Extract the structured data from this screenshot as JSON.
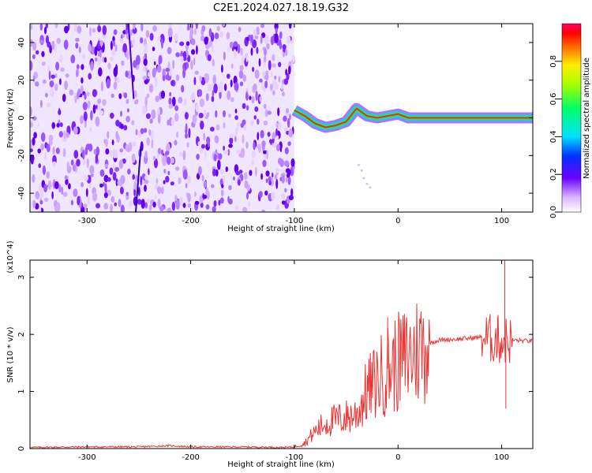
{
  "title": "C2E1.2024.027.18.19.G32",
  "chart_data": [
    {
      "type": "heatmap",
      "xlabel": "Height of straight line (km)",
      "ylabel": "Frequency (Hz)",
      "xlim": [
        -355,
        130
      ],
      "ylim": [
        -50,
        50
      ],
      "x_ticks": [
        -300,
        -200,
        -100,
        0,
        100
      ],
      "y_ticks": [
        -40,
        -20,
        0,
        20,
        40
      ],
      "colorbar": {
        "label": "Normalized spectral amplitude",
        "range": [
          0,
          1
        ],
        "ticks": [
          0.0,
          0.2,
          0.4,
          0.6,
          0.8
        ]
      },
      "noise_region": {
        "x_range": [
          -355,
          -100
        ]
      },
      "signal_trace": [
        {
          "x": -100,
          "y": 4
        },
        {
          "x": -90,
          "y": 1
        },
        {
          "x": -80,
          "y": -3
        },
        {
          "x": -70,
          "y": -5
        },
        {
          "x": -60,
          "y": -4
        },
        {
          "x": -50,
          "y": -2
        },
        {
          "x": -40,
          "y": 5
        },
        {
          "x": -30,
          "y": 1
        },
        {
          "x": -20,
          "y": 0
        },
        {
          "x": -10,
          "y": 1
        },
        {
          "x": 0,
          "y": 2
        },
        {
          "x": 10,
          "y": 0
        },
        {
          "x": 50,
          "y": 0
        },
        {
          "x": 100,
          "y": 0
        },
        {
          "x": 130,
          "y": 0
        }
      ],
      "grid": false
    },
    {
      "type": "line",
      "xlabel": "Height of straight line (km)",
      "ylabel": "SNR (10 * v/v)",
      "y_multiplier": "(x10^4)",
      "xlim": [
        -355,
        130
      ],
      "ylim": [
        0,
        3.3
      ],
      "x_ticks": [
        -300,
        -200,
        -100,
        0,
        100
      ],
      "y_ticks": [
        0,
        1,
        2,
        3
      ],
      "color": "#ee3333",
      "series": [
        {
          "points": [
            [
              -355,
              0.02
            ],
            [
              -300,
              0.03
            ],
            [
              -250,
              0.03
            ],
            [
              -220,
              0.05
            ],
            [
              -200,
              0.03
            ],
            [
              -150,
              0.03
            ],
            [
              -110,
              0.02
            ],
            [
              -100,
              0.03
            ],
            [
              -90,
              0.1
            ],
            [
              -80,
              0.3
            ],
            [
              -70,
              0.45
            ],
            [
              -60,
              0.5
            ],
            [
              -50,
              0.55
            ],
            [
              -40,
              0.6
            ],
            [
              -30,
              1.0
            ],
            [
              -20,
              1.2
            ],
            [
              -10,
              1.4
            ],
            [
              0,
              1.5
            ],
            [
              10,
              1.6
            ],
            [
              20,
              1.75
            ],
            [
              30,
              1.85
            ],
            [
              40,
              1.9
            ],
            [
              60,
              1.92
            ],
            [
              80,
              1.95
            ],
            [
              90,
              1.92
            ],
            [
              100,
              1.9
            ],
            [
              110,
              1.9
            ],
            [
              130,
              1.88
            ]
          ]
        }
      ],
      "grid": false
    }
  ]
}
